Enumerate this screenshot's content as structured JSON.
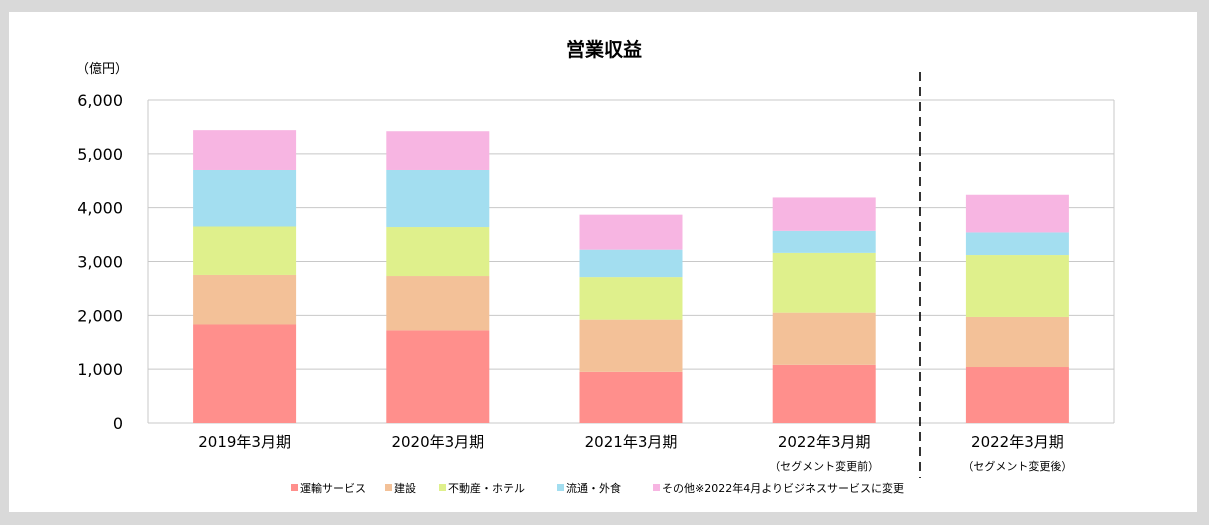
{
  "chart_data": {
    "type": "bar",
    "stacked": true,
    "title": "営業収益",
    "unit_label": "（億円）",
    "ylim": [
      0,
      6000
    ],
    "yticks": [
      "0",
      "1,000",
      "2,000",
      "3,000",
      "4,000",
      "5,000",
      "6,000"
    ],
    "ytick_values": [
      0,
      1000,
      2000,
      3000,
      4000,
      5000,
      6000
    ],
    "grid": true,
    "legend_position": "bottom",
    "categories": [
      "2019年3月期",
      "2020年3月期",
      "2021年3月期",
      "2022年3月期",
      "2022年3月期"
    ],
    "category_notes": [
      "",
      "",
      "",
      "（セグメント変更前）",
      "（セグメント変更後）"
    ],
    "divider_after_category": 4,
    "series": [
      {
        "name": "運輸サービス",
        "color": "#ff8f8c",
        "values": [
          1830,
          1720,
          950,
          1080,
          1040
        ]
      },
      {
        "name": "建設",
        "color": "#f3c198",
        "values": [
          920,
          1010,
          970,
          970,
          930
        ]
      },
      {
        "name": "不動産・ホテル",
        "color": "#dff08c",
        "values": [
          900,
          910,
          790,
          1110,
          1150
        ]
      },
      {
        "name": "流通・外食",
        "color": "#a3def0",
        "values": [
          1050,
          1060,
          510,
          410,
          420
        ]
      },
      {
        "name": "その他※2022年4月よりビジネスサービスに変更",
        "color": "#f7b5e2",
        "values": [
          740,
          720,
          650,
          620,
          700
        ]
      }
    ]
  }
}
